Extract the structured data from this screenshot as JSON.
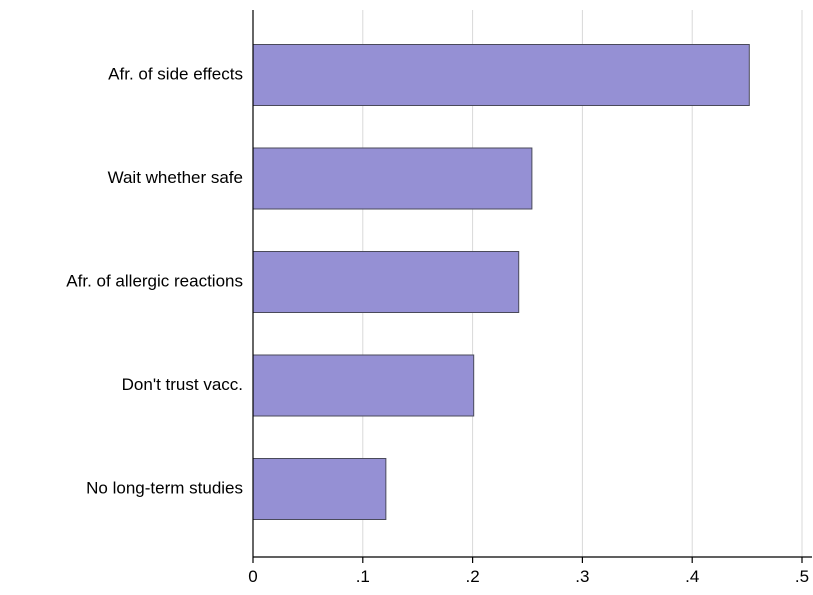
{
  "chart_data": {
    "type": "bar",
    "orientation": "horizontal",
    "categories": [
      "Afr. of side effects",
      "Wait whether safe",
      "Afr. of allergic reactions",
      "Don't trust vacc.",
      "No long-term studies"
    ],
    "values": [
      0.452,
      0.254,
      0.242,
      0.201,
      0.121
    ],
    "xlim": [
      0,
      0.5
    ],
    "xticks": [
      0,
      0.1,
      0.2,
      0.3,
      0.4,
      0.5
    ],
    "xtick_labels": [
      "0",
      ".1",
      ".2",
      ".3",
      ".4",
      ".5"
    ],
    "title": "",
    "xlabel": "",
    "ylabel": "",
    "grid": "vertical",
    "legend": "none",
    "bar_color": "#9590d4",
    "bar_edge_color": "#4a4a5a",
    "grid_color": "#d9d9d9",
    "axis_color": "#000000"
  }
}
